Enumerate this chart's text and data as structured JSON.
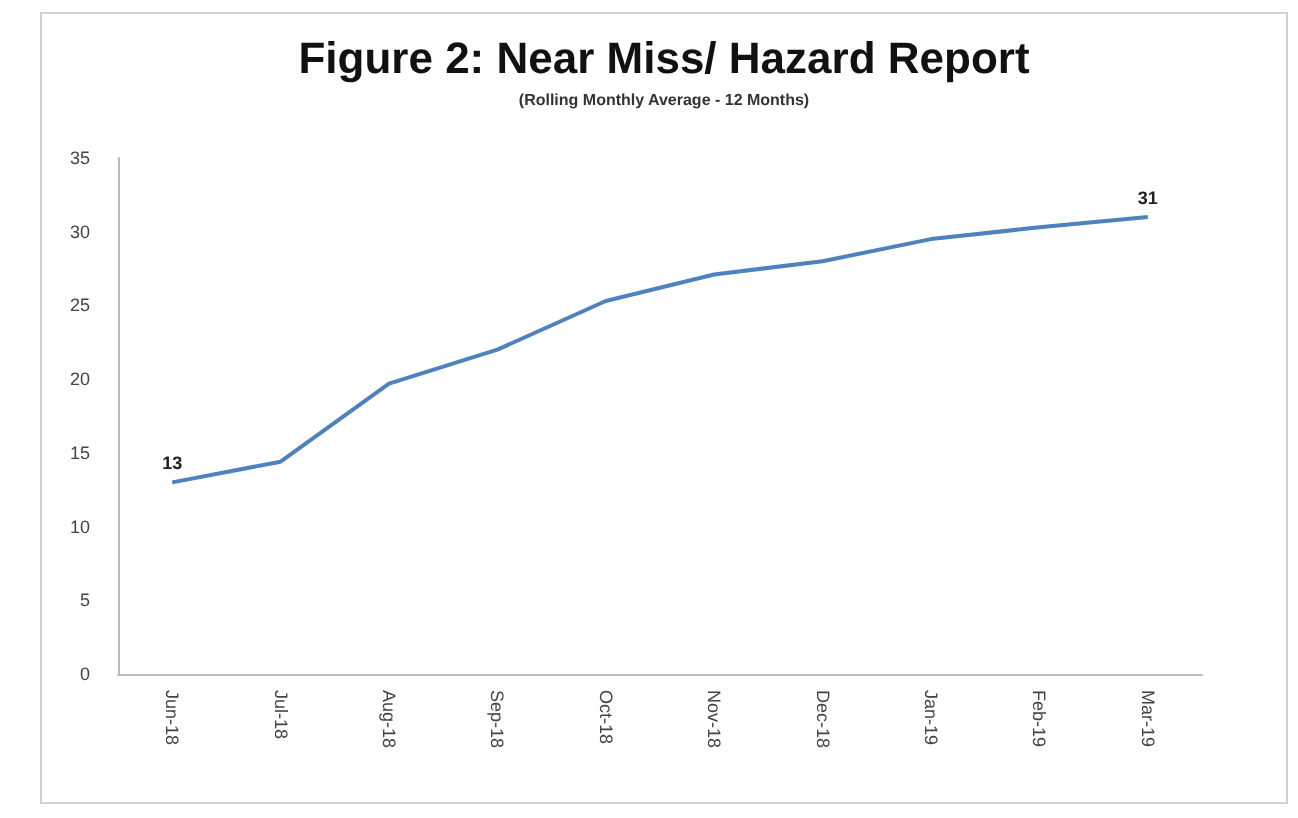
{
  "chart_data": {
    "type": "line",
    "title": "Figure 2: Near Miss/ Hazard Report",
    "subtitle": "(Rolling Monthly Average - 12 Months)",
    "categories": [
      "Jun-18",
      "Jul-18",
      "Aug-18",
      "Sep-18",
      "Oct-18",
      "Nov-18",
      "Dec-18",
      "Jan-19",
      "Feb-19",
      "Mar-19"
    ],
    "series": [
      {
        "color": "#4f81bd",
        "values": [
          13,
          14.4,
          19.7,
          22,
          25.3,
          27.1,
          28,
          29.5,
          30.3,
          31
        ],
        "value_labels": [
          "13",
          null,
          null,
          null,
          null,
          null,
          null,
          null,
          null,
          "31"
        ]
      }
    ],
    "ylim": [
      0,
      35
    ],
    "yticks": [
      0,
      5,
      10,
      15,
      20,
      25,
      30,
      35
    ],
    "grid": false,
    "marker": "none",
    "line_style": "solid"
  }
}
